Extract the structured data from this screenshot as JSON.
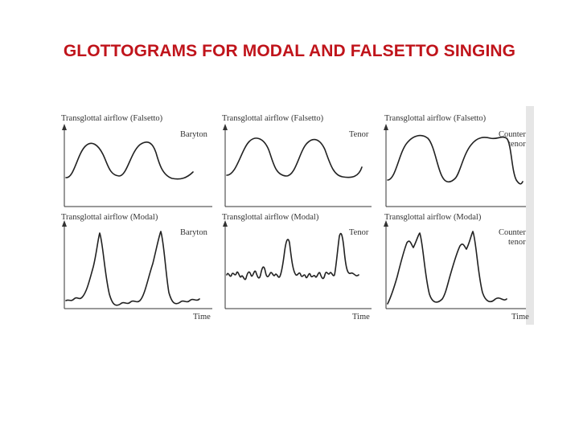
{
  "title": "GLOTTOGRAMS FOR MODAL AND FALSETTO SINGING",
  "figure": {
    "panels": [
      {
        "id": "falsetto-baryton",
        "y_label": "Transglottal airflow (Falsetto)",
        "voice": [
          "Baryton"
        ],
        "time_label": ""
      },
      {
        "id": "falsetto-tenor",
        "y_label": "Transglottal airflow (Falsetto)",
        "voice": [
          "Tenor"
        ],
        "time_label": ""
      },
      {
        "id": "falsetto-countertenor",
        "y_label": "Transglottal airflow (Falsetto)",
        "voice": [
          "Counter",
          "tenor"
        ],
        "time_label": ""
      },
      {
        "id": "modal-baryton",
        "y_label": "Transglottal airflow (Modal)",
        "voice": [
          "Baryton"
        ],
        "time_label": "Time"
      },
      {
        "id": "modal-tenor",
        "y_label": "Transglottal airflow (Modal)",
        "voice": [
          "Tenor"
        ],
        "time_label": "Time"
      },
      {
        "id": "modal-countertenor",
        "y_label": "Transglottal airflow (Modal)",
        "voice": [
          "Counter",
          "tenor"
        ],
        "time_label": "Time"
      }
    ]
  }
}
